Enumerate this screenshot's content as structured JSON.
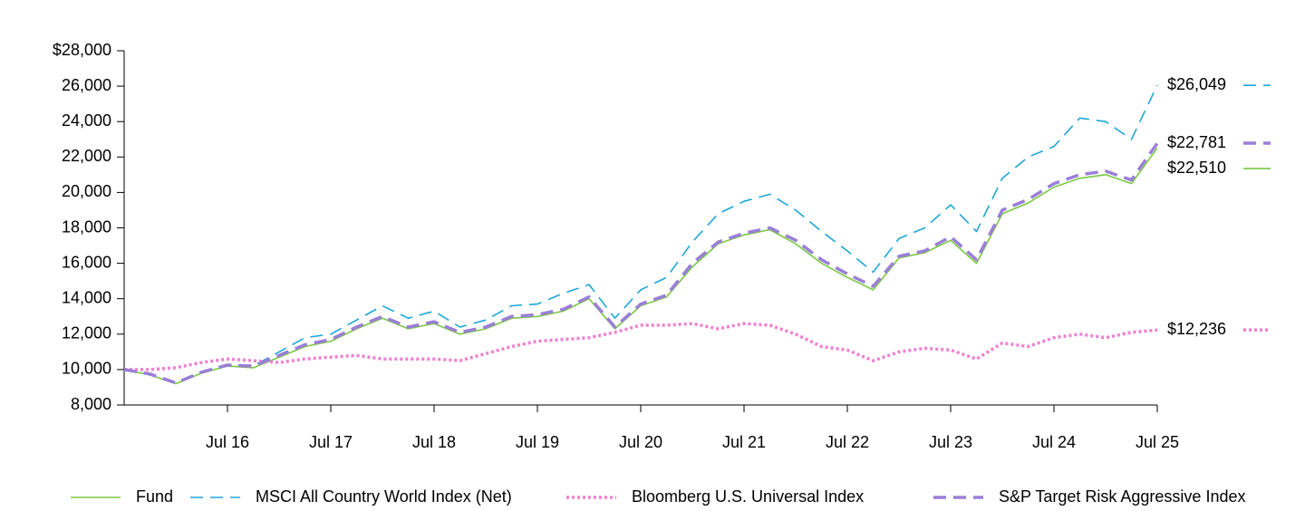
{
  "chart_data": {
    "type": "line",
    "categories": [
      null,
      null,
      null,
      null,
      "Jul 16",
      null,
      null,
      null,
      "Jul 17",
      null,
      null,
      null,
      "Jul 18",
      null,
      null,
      null,
      "Jul 19",
      null,
      null,
      null,
      "Jul 20",
      null,
      null,
      null,
      "Jul 21",
      null,
      null,
      null,
      "Jul 22",
      null,
      null,
      null,
      "Jul 23",
      null,
      null,
      null,
      "Jul 24",
      null,
      null,
      null,
      "Jul 25"
    ],
    "ylim": [
      8000,
      28000
    ],
    "yticks": [
      {
        "value": 8000,
        "label": "8,000"
      },
      {
        "value": 10000,
        "label": "10,000"
      },
      {
        "value": 12000,
        "label": "12,000"
      },
      {
        "value": 14000,
        "label": "14,000"
      },
      {
        "value": 16000,
        "label": "16,000"
      },
      {
        "value": 18000,
        "label": "18,000"
      },
      {
        "value": 20000,
        "label": "20,000"
      },
      {
        "value": 22000,
        "label": "22,000"
      },
      {
        "value": 24000,
        "label": "24,000"
      },
      {
        "value": 26000,
        "label": "26,000"
      },
      {
        "value": 28000,
        "label": "$28,000"
      }
    ],
    "legend": "bottom",
    "series": [
      {
        "name": "Fund",
        "color": "#7ac943",
        "style": "solid",
        "width": 1.6,
        "values": [
          10000,
          9700,
          9200,
          9800,
          10200,
          10100,
          10700,
          11300,
          11600,
          12300,
          12900,
          12300,
          12600,
          12000,
          12300,
          12900,
          13000,
          13300,
          14000,
          12300,
          13600,
          14100,
          15800,
          17100,
          17600,
          17900,
          17100,
          16000,
          15200,
          14500,
          16300,
          16600,
          17300,
          16000,
          18800,
          19400,
          20300,
          20800,
          21000,
          20500,
          22510
        ],
        "value_labels": [
          null,
          null,
          null,
          null,
          null,
          null,
          null,
          null,
          null,
          null,
          null,
          null,
          null,
          null,
          null,
          null,
          null,
          null,
          null,
          null,
          null,
          null,
          null,
          null,
          null,
          null,
          null,
          null,
          null,
          null,
          null,
          null,
          null,
          null,
          null,
          null,
          null,
          null,
          null,
          null,
          "$22,510"
        ]
      },
      {
        "name": "MSCI All Country World Index (Net)",
        "color": "#1ea7d6",
        "style": "dashed",
        "width": 1.6,
        "values": [
          10000,
          9700,
          9200,
          9900,
          10300,
          10200,
          11000,
          11800,
          12000,
          12800,
          13600,
          12900,
          13300,
          12400,
          12800,
          13600,
          13700,
          14300,
          14800,
          12900,
          14500,
          15200,
          17200,
          18800,
          19500,
          19900,
          19000,
          17800,
          16700,
          15500,
          17400,
          18000,
          19300,
          17800,
          20800,
          22000,
          22600,
          24200,
          24000,
          23000,
          26049
        ],
        "value_labels": [
          null,
          null,
          null,
          null,
          null,
          null,
          null,
          null,
          null,
          null,
          null,
          null,
          null,
          null,
          null,
          null,
          null,
          null,
          null,
          null,
          null,
          null,
          null,
          null,
          null,
          null,
          null,
          null,
          null,
          null,
          null,
          null,
          null,
          null,
          null,
          null,
          null,
          null,
          null,
          null,
          "$26,049"
        ]
      },
      {
        "name": "Bloomberg U.S. Universal Index",
        "color": "#f07fd0",
        "style": "dotted",
        "width": 3.5,
        "values": [
          10000,
          10000,
          10100,
          10400,
          10600,
          10500,
          10400,
          10600,
          10700,
          10800,
          10600,
          10600,
          10600,
          10500,
          10900,
          11300,
          11600,
          11700,
          11800,
          12100,
          12500,
          12500,
          12600,
          12300,
          12600,
          12500,
          12000,
          11300,
          11100,
          10500,
          11000,
          11200,
          11100,
          10600,
          11500,
          11300,
          11800,
          12000,
          11800,
          12100,
          12236
        ],
        "value_labels": [
          null,
          null,
          null,
          null,
          null,
          null,
          null,
          null,
          null,
          null,
          null,
          null,
          null,
          null,
          null,
          null,
          null,
          null,
          null,
          null,
          null,
          null,
          null,
          null,
          null,
          null,
          null,
          null,
          null,
          null,
          null,
          null,
          null,
          null,
          null,
          null,
          null,
          null,
          null,
          null,
          "$12,236"
        ]
      },
      {
        "name": "S&P Target Risk Aggressive Index",
        "color": "#9b7fd8",
        "style": "dashed",
        "width": 3.5,
        "values": [
          10000,
          9750,
          9250,
          9850,
          10250,
          10200,
          10800,
          11400,
          11700,
          12400,
          13000,
          12400,
          12700,
          12100,
          12400,
          13000,
          13100,
          13400,
          14100,
          12400,
          13700,
          14200,
          16000,
          17200,
          17700,
          18000,
          17300,
          16200,
          15400,
          14700,
          16400,
          16700,
          17500,
          16200,
          19000,
          19600,
          20500,
          21000,
          21200,
          20700,
          22781
        ],
        "value_labels": [
          null,
          null,
          null,
          null,
          null,
          null,
          null,
          null,
          null,
          null,
          null,
          null,
          null,
          null,
          null,
          null,
          null,
          null,
          null,
          null,
          null,
          null,
          null,
          null,
          null,
          null,
          null,
          null,
          null,
          null,
          null,
          null,
          null,
          null,
          null,
          null,
          null,
          null,
          null,
          null,
          "$22,781"
        ]
      }
    ]
  }
}
